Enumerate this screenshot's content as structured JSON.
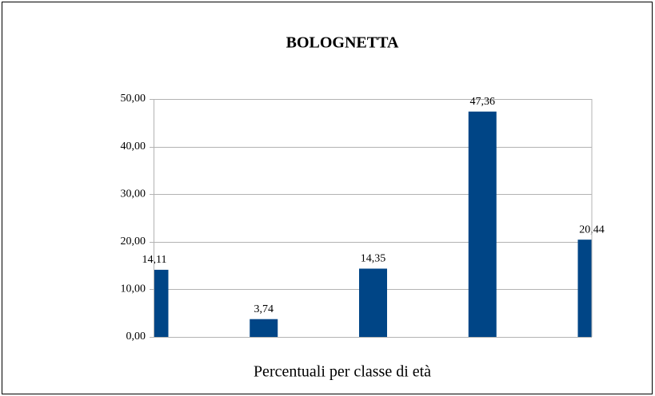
{
  "chart_data": {
    "type": "bar",
    "title": "BOLOGNETTA",
    "x_label": "Percentuali per classe di età",
    "categories": [
      null,
      null,
      null,
      null,
      null
    ],
    "values": [
      14.11,
      3.74,
      14.35,
      47.36,
      20.44
    ],
    "value_labels": [
      "14,11",
      "3,74",
      "14,35",
      "47,36",
      "20,44"
    ],
    "color": "#004586",
    "ylim": [
      0,
      50
    ],
    "yticks": [
      {
        "value": 0,
        "label": "0,00"
      },
      {
        "value": 10,
        "label": "10,00"
      },
      {
        "value": 20,
        "label": "20,00"
      },
      {
        "value": 30,
        "label": "30,00"
      },
      {
        "value": 40,
        "label": "40,00"
      },
      {
        "value": 50,
        "label": "50,00"
      }
    ],
    "grid": true
  }
}
